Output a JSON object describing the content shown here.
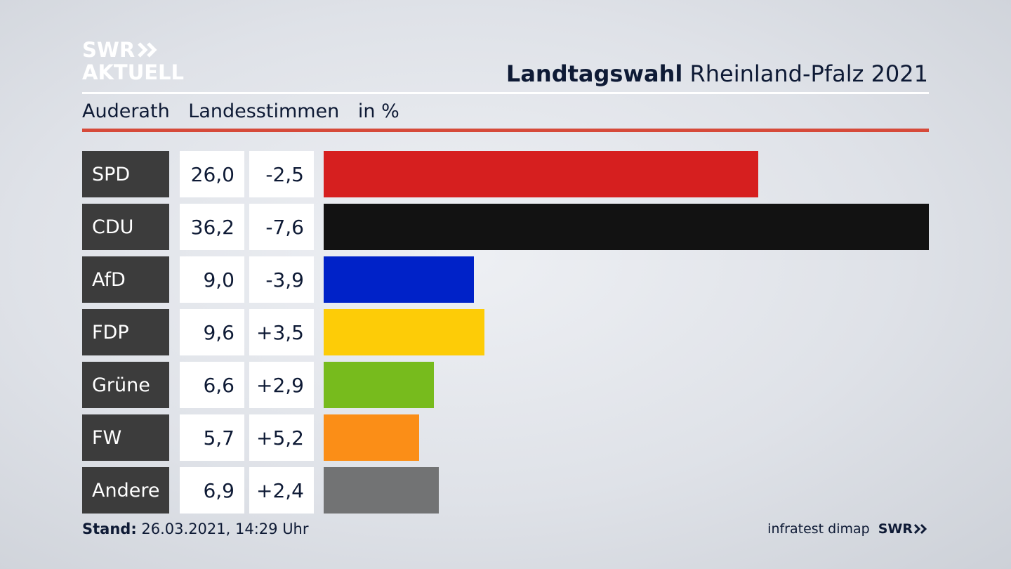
{
  "logo": {
    "line1": "SWR",
    "line2": "AKTUELL"
  },
  "header": {
    "title_bold": "Landtagswahl",
    "title_rest": "Rheinland-Pfalz 2021"
  },
  "subheader": {
    "location": "Auderath",
    "vote_type": "Landesstimmen",
    "unit": "in %"
  },
  "footer": {
    "stand_label": "Stand:",
    "stand_value": "26.03.2021, 14:29 Uhr",
    "source": "infratest dimap",
    "brand": "SWR"
  },
  "colors": {
    "accent_rule": "#d64a3a",
    "party_label_bg": "#3c3c3c"
  },
  "chart_data": {
    "type": "bar",
    "orientation": "horizontal",
    "categories": [
      "SPD",
      "CDU",
      "AfD",
      "FDP",
      "Grüne",
      "FW",
      "Andere"
    ],
    "values": [
      26.0,
      36.2,
      9.0,
      9.6,
      6.6,
      5.7,
      6.9
    ],
    "value_labels": [
      "26,0",
      "36,2",
      "9,0",
      "9,6",
      "6,6",
      "5,7",
      "6,9"
    ],
    "diff_labels": [
      "-2,5",
      "-7,6",
      "-3,9",
      "+3,5",
      "+2,9",
      "+5,2",
      "+2,4"
    ],
    "diff_values": [
      -2.5,
      -7.6,
      -3.9,
      3.5,
      2.9,
      5.2,
      2.4
    ],
    "colors": [
      "#d61f1f",
      "#121212",
      "#0022c8",
      "#fdcc07",
      "#77bb1d",
      "#fb8e17",
      "#727374"
    ],
    "xlim": [
      0,
      36.2
    ],
    "grid": false,
    "legend": "none"
  }
}
